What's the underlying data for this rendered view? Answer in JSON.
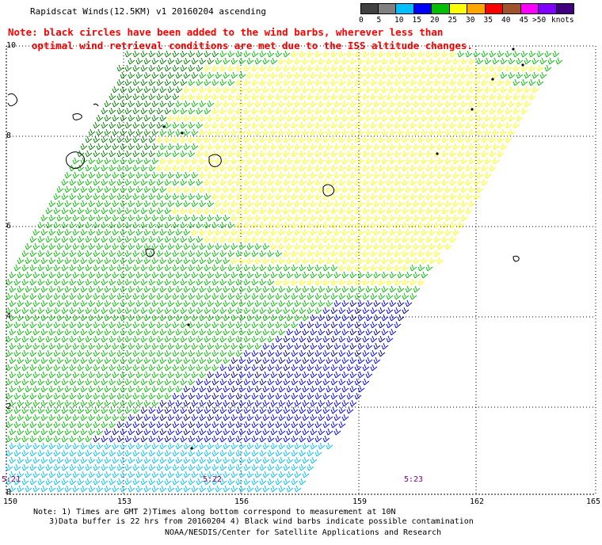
{
  "title": "Rapidscat Winds(12.5KM) v1 20160204 ascending",
  "note_line1": "Note: black circles have been added to the wind barbs, wherever less than",
  "note_line2": "optimal wind retrieval conditions are met due to the ISS altitude changes.",
  "legend": {
    "unit": "knots",
    "labels": [
      "0",
      "5",
      "10",
      "15",
      "20",
      "25",
      "30",
      "35",
      "40",
      "45",
      ">50"
    ],
    "colors": [
      "#404040",
      "#808080",
      "#00bfff",
      "#0000ff",
      "#00c000",
      "#ffff00",
      "#ffa500",
      "#ff0000",
      "#a0522d",
      "#ff00ff",
      "#8000ff",
      "#400080"
    ]
  },
  "axes": {
    "lon_ticks": [
      "150",
      "153",
      "156",
      "159",
      "162",
      "165"
    ],
    "lat_ticks": [
      "10",
      "8",
      "6",
      "4",
      "2",
      "0"
    ]
  },
  "pass_times": [
    "5:21",
    "5:22",
    "5:23"
  ],
  "footer": {
    "line1": "Note: 1) Times are GMT 2)Times along bottom correspond to measurement at 10N",
    "line2": "3)Data buffer is 22 hrs from 20160204 4) Black wind barbs indicate possible contamination",
    "credit": "NOAA/NESDIS/Center for Satellite Applications and Research"
  },
  "swath_colors": {
    "yellow": "#ffff00",
    "green": "#00c000",
    "darkgreen": "#008000",
    "blue": "#0000ff",
    "navy": "#000080",
    "cyan": "#00bfff"
  }
}
